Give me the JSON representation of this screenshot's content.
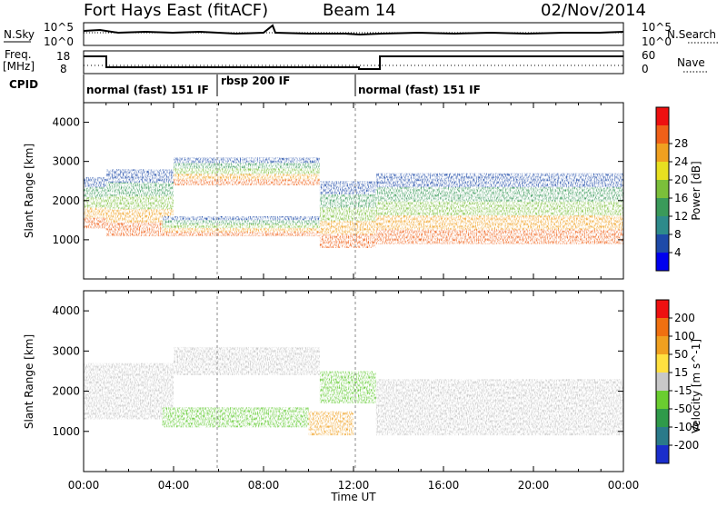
{
  "header": {
    "title": "Fort Hays East (fitACF)",
    "beam": "Beam 14",
    "date": "02/Nov/2014"
  },
  "panels": {
    "nsky": {
      "label": "N.Sky",
      "tick_top": "10^5",
      "tick_bottom": "10^0",
      "right_tick_top": "10^5",
      "right_tick_bottom": "10^0",
      "right_label": "N.Search"
    },
    "freq": {
      "label_top": "Freq.",
      "label_units": "[MHz]",
      "tick_top": "18",
      "tick_bottom": "8",
      "right_tick_top": "60",
      "right_tick_bottom": "0",
      "right_label": "Nave"
    },
    "cpid": {
      "label": "CPID",
      "segments": [
        "normal (fast) 151 IF",
        "rbsp 200 IF",
        "normal (fast) 151 IF"
      ]
    }
  },
  "chart_data": [
    {
      "type": "heatmap",
      "name": "Power",
      "xlabel": "Time UT",
      "ylabel": "Slant Range [km]",
      "x_ticks": [
        "00:00",
        "04:00",
        "08:00",
        "12:00",
        "16:00",
        "20:00",
        "00:00"
      ],
      "y_ticks": [
        1000,
        2000,
        3000,
        4000
      ],
      "ylim": [
        0,
        4500
      ],
      "xlim_hours": [
        0,
        24
      ],
      "colorbar": {
        "label": "Power [dB]",
        "ticks": [
          4,
          8,
          12,
          16,
          20,
          24,
          28
        ],
        "colors": [
          "#0000ee",
          "#1e4aa8",
          "#2e8b8b",
          "#3a9a5a",
          "#7bbf3a",
          "#e8e020",
          "#f0a020",
          "#f06018",
          "#ee1010"
        ]
      },
      "echo_bands": [
        {
          "t_start": 0.0,
          "t_end": 1.0,
          "range_low": 1300,
          "range_high": 2600
        },
        {
          "t_start": 1.0,
          "t_end": 4.0,
          "range_low": 1100,
          "range_high": 2800
        },
        {
          "t_start": 4.0,
          "t_end": 10.5,
          "range_low": 2400,
          "range_high": 3100
        },
        {
          "t_start": 3.5,
          "t_end": 11.5,
          "range_low": 1100,
          "range_high": 1600
        },
        {
          "t_start": 10.5,
          "t_end": 13.0,
          "range_low": 800,
          "range_high": 2500
        },
        {
          "t_start": 13.0,
          "t_end": 24.0,
          "range_low": 900,
          "range_high": 2700
        }
      ]
    },
    {
      "type": "heatmap",
      "name": "Velocity",
      "xlabel": "Time UT",
      "ylabel": "Slant Range [km]",
      "x_ticks": [
        "00:00",
        "04:00",
        "08:00",
        "12:00",
        "16:00",
        "20:00",
        "00:00"
      ],
      "y_ticks": [
        1000,
        2000,
        3000,
        4000
      ],
      "ylim": [
        0,
        4500
      ],
      "xlim_hours": [
        0,
        24
      ],
      "colorbar": {
        "label": "Velocity [m s^-1]",
        "ticks": [
          200,
          100,
          50,
          15,
          -15,
          -50,
          -100,
          -200
        ],
        "colors": [
          "#1a2ecc",
          "#2a7a8a",
          "#2f9a4a",
          "#6acd30",
          "#c8c8c8",
          "#ffe040",
          "#f0a020",
          "#f07010",
          "#ee1010"
        ]
      },
      "echo_bands": [
        {
          "t_start": 0.0,
          "t_end": 4.0,
          "range_low": 1300,
          "range_high": 2700,
          "color": "gray"
        },
        {
          "t_start": 4.0,
          "t_end": 10.5,
          "range_low": 2400,
          "range_high": 3100,
          "color": "gray"
        },
        {
          "t_start": 3.5,
          "t_end": 10.0,
          "range_low": 1100,
          "range_high": 1600,
          "color": "green"
        },
        {
          "t_start": 10.0,
          "t_end": 12.0,
          "range_low": 900,
          "range_high": 1500,
          "color": "orange"
        },
        {
          "t_start": 10.5,
          "t_end": 13.0,
          "range_low": 1700,
          "range_high": 2500,
          "color": "green"
        },
        {
          "t_start": 13.0,
          "t_end": 24.0,
          "range_low": 900,
          "range_high": 2300,
          "color": "gray"
        }
      ]
    }
  ]
}
